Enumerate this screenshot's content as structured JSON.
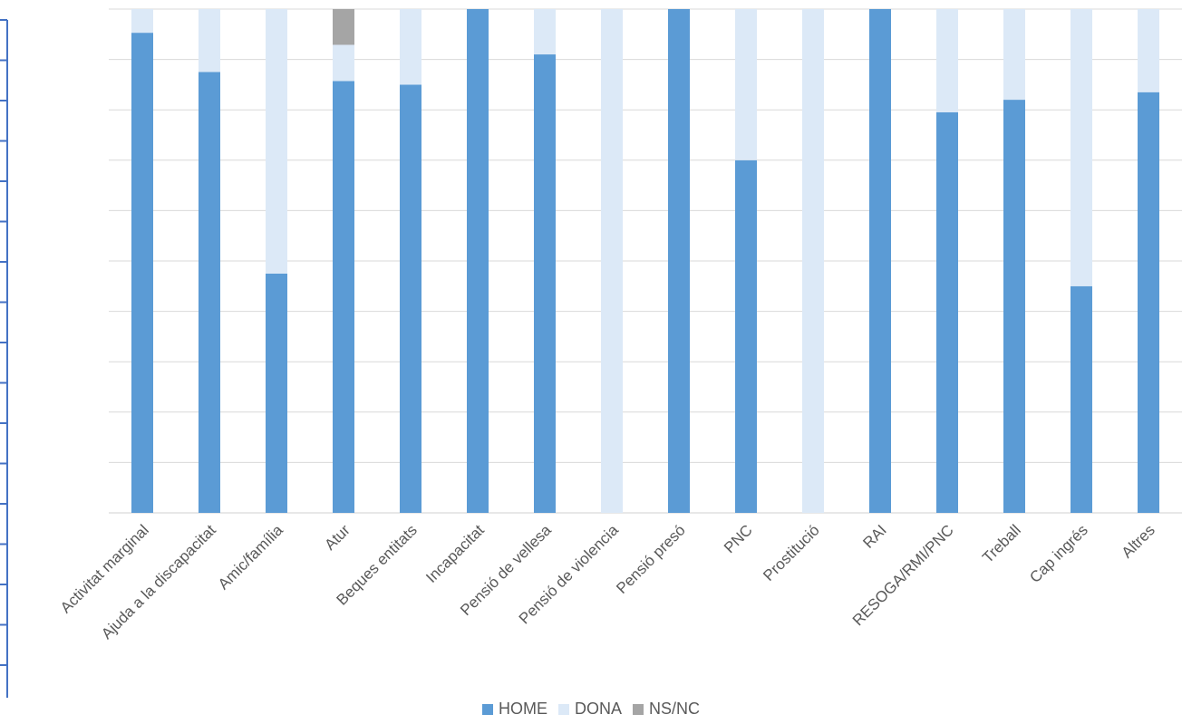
{
  "chart_data": {
    "type": "bar",
    "stacked": true,
    "normalized": true,
    "categories": [
      "Activitat marginal",
      "Ajuda a la discapacitat",
      "Amic/família",
      "Atur",
      "Beques entitats",
      "Incapacitat",
      "Pensió de vellesa",
      "Pensió de violencia",
      "Pensió presó",
      "PNC",
      "Prostitució",
      "RAI",
      "RESOGA/RMI/PNC",
      "Treball",
      "Cap ingrés",
      "Altres"
    ],
    "series": [
      {
        "name": "HOME",
        "color": "#5b9bd5",
        "values": [
          0.953,
          0.875,
          0.475,
          0.857,
          0.85,
          1.0,
          0.91,
          0.0,
          1.0,
          0.7,
          0.0,
          1.0,
          0.795,
          0.82,
          0.45,
          0.835
        ]
      },
      {
        "name": "DONA",
        "color": "#dce9f7",
        "values": [
          0.047,
          0.125,
          0.525,
          0.072,
          0.15,
          0.0,
          0.09,
          1.0,
          0.0,
          0.3,
          1.0,
          0.0,
          0.205,
          0.18,
          0.55,
          0.165
        ]
      },
      {
        "name": "NS/NC",
        "color": "#a5a5a5",
        "values": [
          0,
          0,
          0,
          0.071,
          0,
          0,
          0,
          0,
          0,
          0,
          0,
          0,
          0,
          0,
          0,
          0
        ]
      }
    ],
    "ylim": [
      0,
      1
    ],
    "grid": true,
    "legend_position": "bottom",
    "title": "",
    "xlabel": "",
    "ylabel": ""
  }
}
